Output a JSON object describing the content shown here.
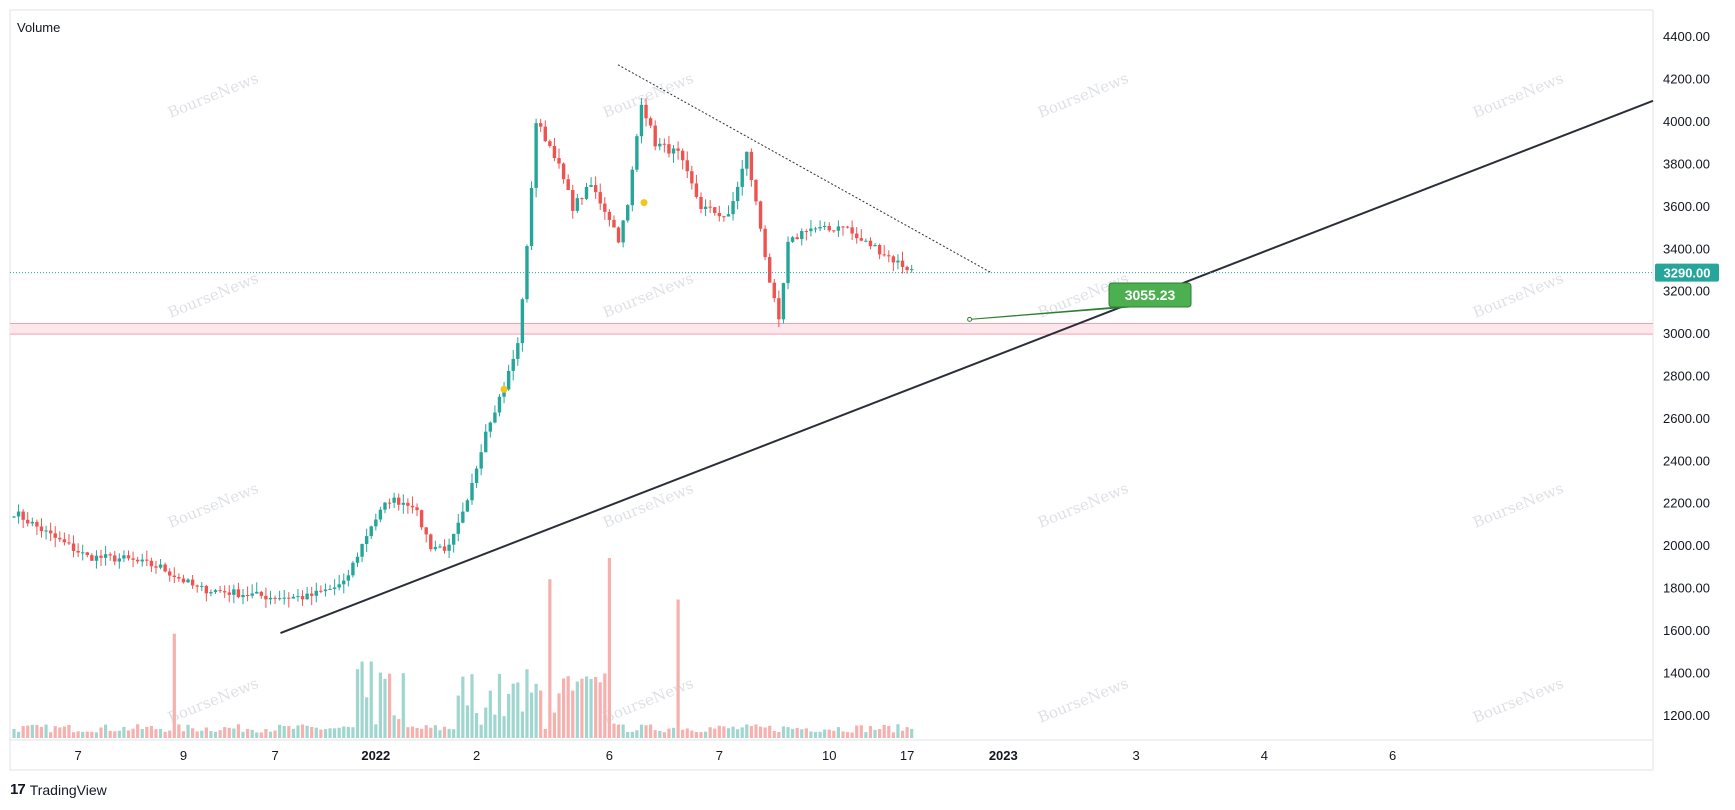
{
  "brand": {
    "logo": "17",
    "name": "TradingView"
  },
  "volume_label": "Volume",
  "watermark": "BourseNews",
  "price_tag": "3290.00",
  "callout": "3055.23",
  "colors": {
    "up": "#26a69a",
    "down": "#ef5350",
    "trend": "#2a2e39",
    "support_fill": "#fde7ec",
    "support_line": "#f7a1ad",
    "callout": "#4caf50",
    "price_line": "#26a69a"
  },
  "chart_data": {
    "type": "candlestick",
    "y_axis": {
      "ticks": [
        "4400.00",
        "4200.00",
        "4000.00",
        "3800.00",
        "3600.00",
        "3400.00",
        "3200.00",
        "3000.00",
        "2800.00",
        "2600.00",
        "2400.00",
        "2200.00",
        "2000.00",
        "1800.00",
        "1600.00",
        "1400.00",
        "1200.00"
      ],
      "range": [
        1100,
        4500
      ]
    },
    "x_axis": {
      "labels": [
        {
          "text": "7",
          "i": 14
        },
        {
          "text": "9",
          "i": 37
        },
        {
          "text": "7",
          "i": 57
        },
        {
          "text": "2022",
          "i": 79,
          "bold": true
        },
        {
          "text": "2",
          "i": 101
        },
        {
          "text": "6",
          "i": 130
        },
        {
          "text": "7",
          "i": 154
        },
        {
          "text": "10",
          "i": 178
        },
        {
          "text": "17",
          "i": 195
        },
        {
          "text": "2023",
          "i": 216,
          "bold": true
        },
        {
          "text": "3",
          "i": 245
        },
        {
          "text": "4",
          "i": 273
        },
        {
          "text": "6",
          "i": 301
        }
      ]
    },
    "last_price": 3290,
    "support_zone": [
      3000,
      3050
    ],
    "trendline": {
      "from": {
        "i": 56,
        "price": 1590
      },
      "to": {
        "i": 323,
        "price": 4100
      }
    },
    "resistance_line": {
      "from": {
        "i": 131,
        "price": 4270
      },
      "to": {
        "i": 212,
        "price": 3290
      }
    },
    "callout_point": {
      "i": 208,
      "price": 3055.23
    },
    "anchors": [
      [
        0,
        2160
      ],
      [
        8,
        2050
      ],
      [
        16,
        1950
      ],
      [
        24,
        1940
      ],
      [
        32,
        1900
      ],
      [
        40,
        1800
      ],
      [
        48,
        1780
      ],
      [
        56,
        1760
      ],
      [
        64,
        1760
      ],
      [
        72,
        1820
      ],
      [
        78,
        2100
      ],
      [
        82,
        2220
      ],
      [
        87,
        2200
      ],
      [
        91,
        2000
      ],
      [
        95,
        1990
      ],
      [
        99,
        2200
      ],
      [
        103,
        2550
      ],
      [
        107,
        2750
      ],
      [
        110,
        2950
      ],
      [
        112,
        3400
      ],
      [
        114,
        4000
      ],
      [
        118,
        3850
      ],
      [
        122,
        3600
      ],
      [
        126,
        3700
      ],
      [
        130,
        3550
      ],
      [
        132,
        3450
      ],
      [
        134,
        3600
      ],
      [
        137,
        4100
      ],
      [
        140,
        3900
      ],
      [
        145,
        3850
      ],
      [
        150,
        3600
      ],
      [
        156,
        3550
      ],
      [
        160,
        3850
      ],
      [
        163,
        3500
      ],
      [
        165,
        3250
      ],
      [
        167,
        3050
      ],
      [
        169,
        3420
      ],
      [
        173,
        3500
      ],
      [
        178,
        3490
      ],
      [
        181,
        3520
      ],
      [
        184,
        3450
      ],
      [
        188,
        3410
      ],
      [
        192,
        3350
      ],
      [
        196,
        3300
      ]
    ],
    "volume": {
      "range_max": 1950
    }
  }
}
